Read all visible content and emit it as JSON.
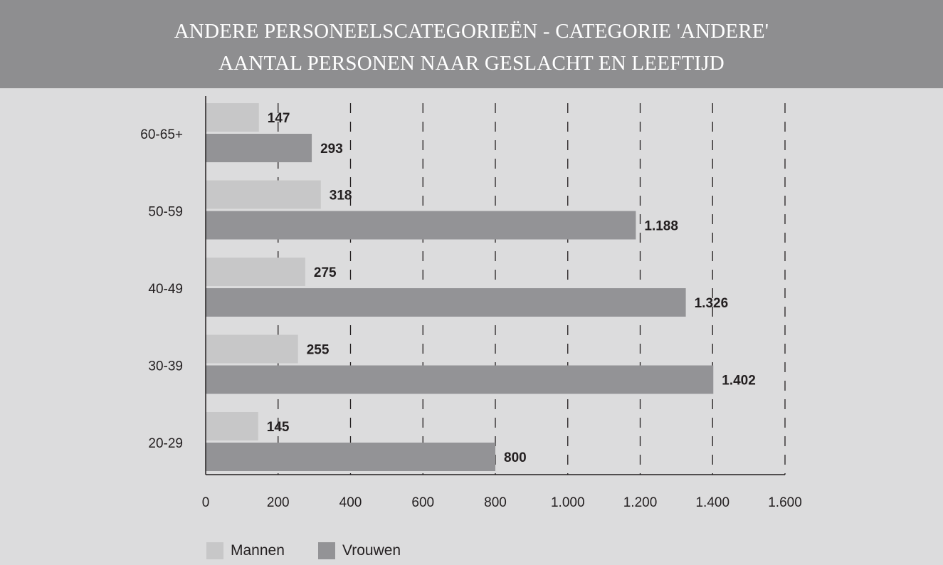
{
  "title": {
    "line1": "ANDERE PERSONEELSCATEGORIEËN - CATEGORIE 'ANDERE'",
    "line2": "AANTAL PERSONEN NAAR GESLACHT EN LEEFTIJD"
  },
  "colors": {
    "background": "#dcdcdd",
    "title_bar": "#8e8e90",
    "mannen": "#c7c7c8",
    "vrouwen": "#939396",
    "text": "#231f20"
  },
  "legend": {
    "mannen": "Mannen",
    "vrouwen": "Vrouwen"
  },
  "chart_data": {
    "type": "bar",
    "orientation": "horizontal",
    "categories": [
      "60-65+",
      "50-59",
      "40-49",
      "30-39",
      "20-29"
    ],
    "series": [
      {
        "name": "Mannen",
        "values": [
          147,
          318,
          275,
          255,
          145
        ],
        "labels": [
          "147",
          "318",
          "275",
          "255",
          "145"
        ]
      },
      {
        "name": "Vrouwen",
        "values": [
          293,
          1188,
          1326,
          1402,
          800
        ],
        "labels": [
          "293",
          "1.188",
          "1.326",
          "1.402",
          "800"
        ]
      }
    ],
    "xlim": [
      0,
      1600
    ],
    "xticks": [
      0,
      200,
      400,
      600,
      800,
      1000,
      1200,
      1400,
      1600
    ],
    "xtick_labels": [
      "0",
      "200",
      "400",
      "600",
      "800",
      "1.000",
      "1.200",
      "1.400",
      "1.600"
    ],
    "grid": "vertical dashed",
    "legend_position": "bottom-left"
  }
}
